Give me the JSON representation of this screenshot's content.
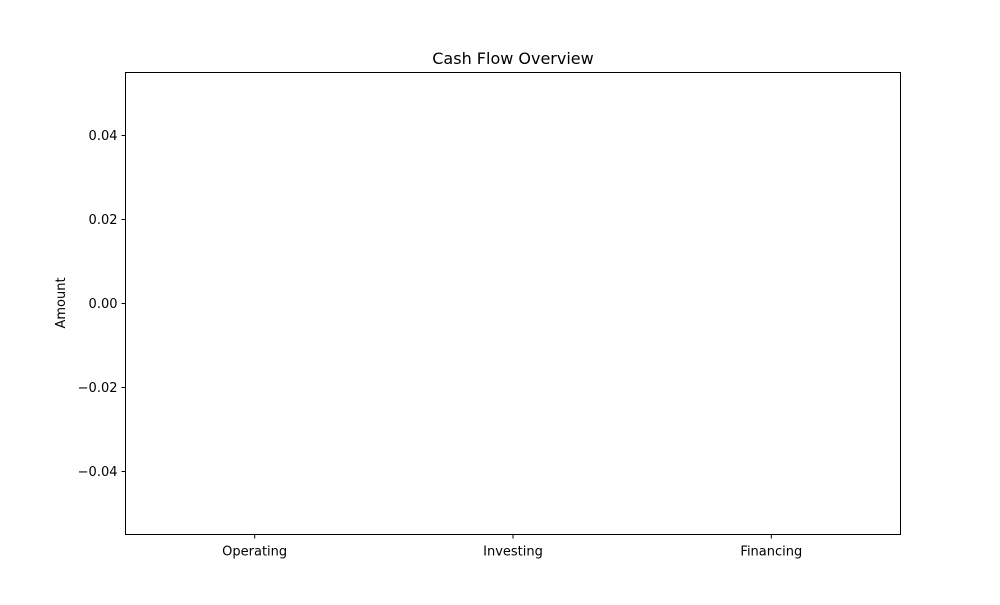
{
  "chart_data": {
    "type": "bar",
    "title": "Cash Flow Overview",
    "xlabel": "",
    "ylabel": "Amount",
    "categories": [
      "Operating",
      "Investing",
      "Financing"
    ],
    "values": [
      0,
      0,
      0
    ],
    "ylim": [
      -0.055,
      0.055
    ],
    "yticks": [
      0.04,
      0.02,
      0.0,
      -0.02,
      -0.04
    ],
    "ytick_labels": [
      "0.04",
      "0.02",
      "0.00",
      "−0.02",
      "−0.04"
    ],
    "grid": false,
    "colors": {
      "axis": "#000000",
      "background": "#ffffff"
    }
  }
}
